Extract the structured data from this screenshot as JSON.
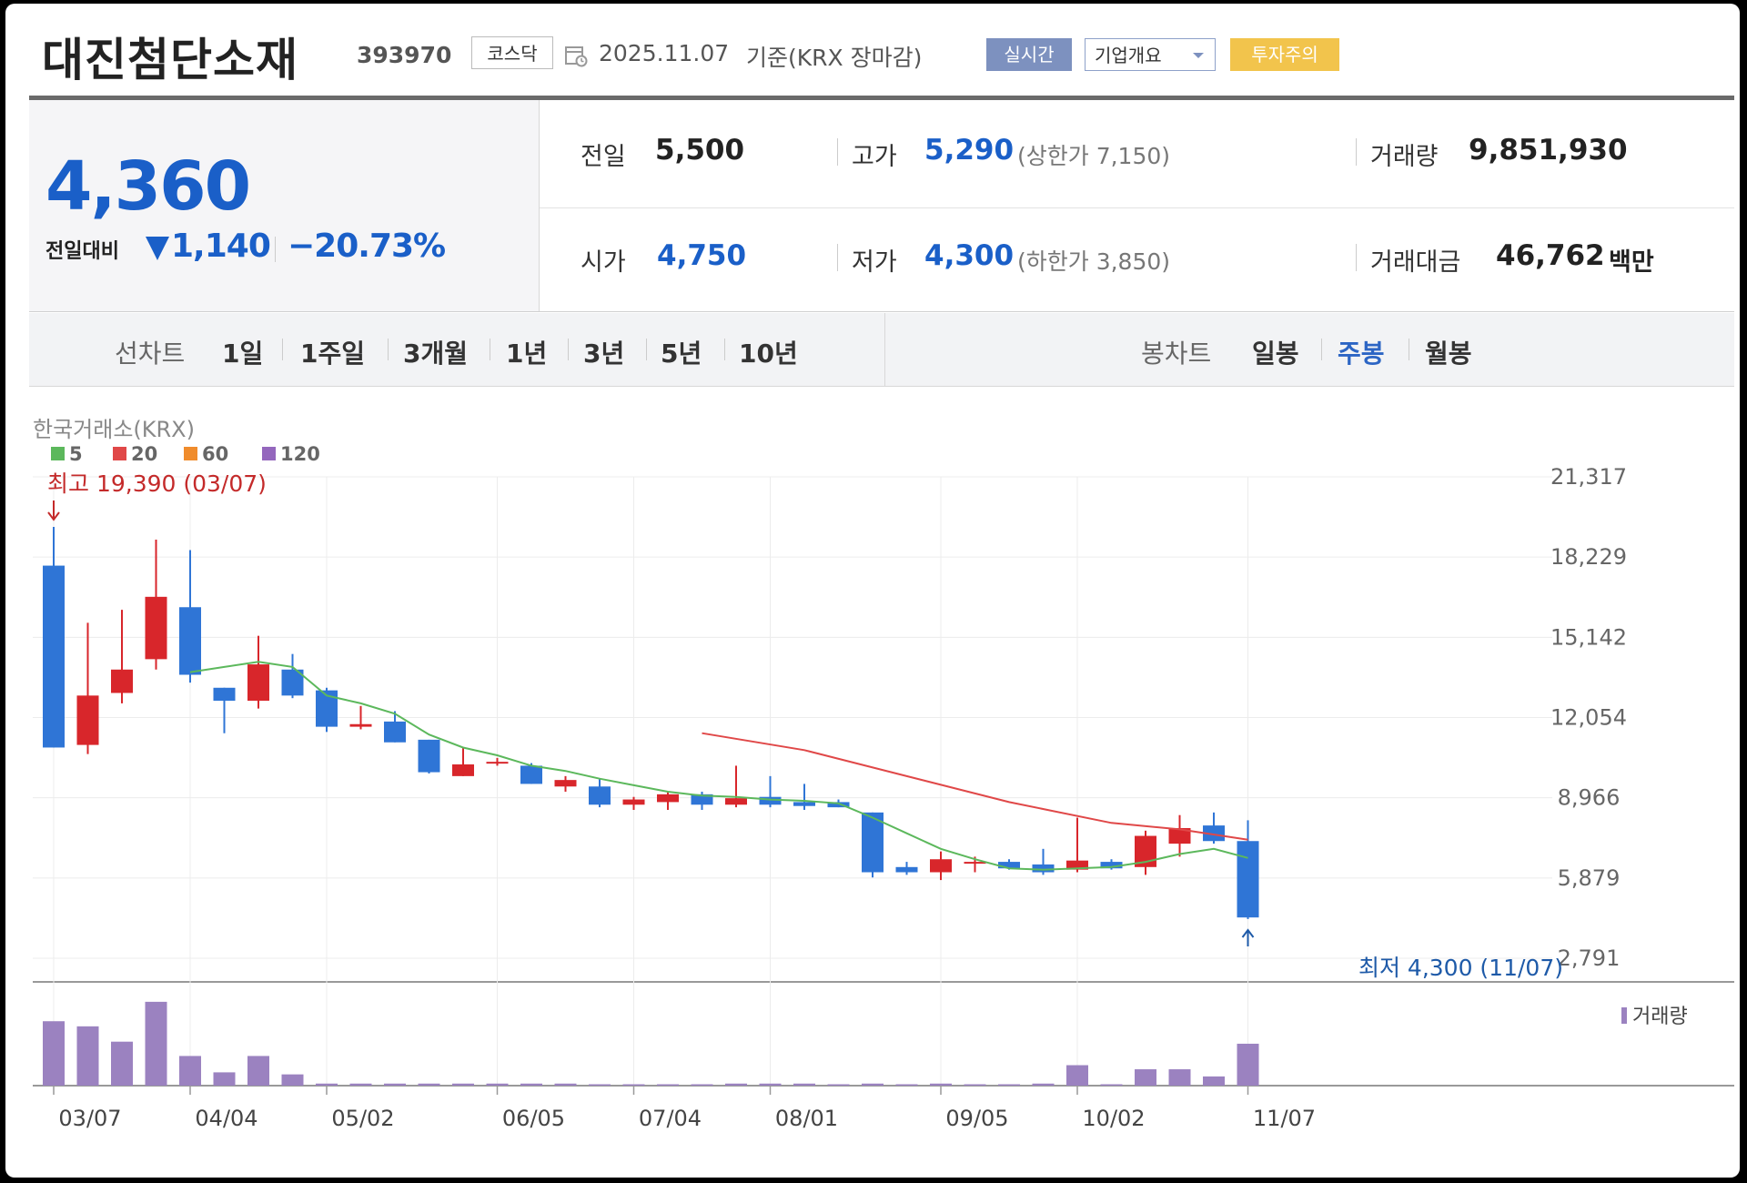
{
  "header": {
    "stock_name": "대진첨단소재",
    "stock_code": "393970",
    "market": "코스닥",
    "date": "2025.11.07",
    "basis": "기준(KRX 장마감)",
    "realtime_label": "실시간",
    "overview_label": "기업개요",
    "warning_label": "투자주의",
    "colors": {
      "realtime": "#7d91bf",
      "warning": "#f2c44c"
    }
  },
  "price": {
    "current": "4,360",
    "change_label": "전일대비",
    "change_value": "1,140",
    "change_pct": "−20.73%",
    "direction": "down",
    "color_down": "#1a5fc8"
  },
  "info": {
    "prev_close": {
      "label": "전일",
      "value": "5,500"
    },
    "open": {
      "label": "시가",
      "value": "4,750"
    },
    "high": {
      "label": "고가",
      "value": "5,290",
      "limit_text": "(상한가 7,150)"
    },
    "low": {
      "label": "저가",
      "value": "4,300",
      "limit_text": "(하한가 3,850)"
    },
    "volume": {
      "label": "거래량",
      "value": "9,851,930"
    },
    "amount": {
      "label": "거래대금",
      "value": "46,762",
      "unit": "백만"
    }
  },
  "periods": {
    "line_label": "선차트",
    "line_items": [
      "1일",
      "1주일",
      "3개월",
      "1년",
      "3년",
      "5년",
      "10년"
    ],
    "candle_label": "봉차트",
    "candle_items": [
      "일봉",
      "주봉",
      "월봉"
    ],
    "selected_candle": "주봉"
  },
  "chart_data": {
    "type": "candlestick",
    "source_label": "한국거래소(KRX)",
    "ma_legend": [
      {
        "name": "5",
        "color": "#5cb85c"
      },
      {
        "name": "20",
        "color": "#e04848"
      },
      {
        "name": "60",
        "color": "#f08c2c"
      },
      {
        "name": "120",
        "color": "#9467bd"
      }
    ],
    "y_ticks": [
      "21,317",
      "18,229",
      "15,142",
      "12,054",
      "8,966",
      "5,879",
      "2,791"
    ],
    "ylim": [
      2791,
      21317
    ],
    "x_labels": [
      {
        "label": "03/07",
        "index": 0
      },
      {
        "label": "04/04",
        "index": 4
      },
      {
        "label": "05/02",
        "index": 8
      },
      {
        "label": "06/05",
        "index": 13
      },
      {
        "label": "07/04",
        "index": 17
      },
      {
        "label": "08/01",
        "index": 21
      },
      {
        "label": "09/05",
        "index": 26
      },
      {
        "label": "10/02",
        "index": 30
      },
      {
        "label": "11/07",
        "index": 35
      }
    ],
    "high_annotation": {
      "text": "최고 19,390 (03/07)",
      "index": 0,
      "value": 19390
    },
    "low_annotation": {
      "text": "최저 4,300 (11/07)",
      "index": 35,
      "value": 4300
    },
    "volume_legend": "거래량",
    "colors": {
      "up": "#d8262b",
      "down": "#2f75d6",
      "volume": "#9b82c0"
    },
    "candles": [
      {
        "o": 17900,
        "h": 19390,
        "l": 10900,
        "c": 10900
      },
      {
        "o": 11000,
        "h": 15700,
        "l": 10650,
        "c": 12900
      },
      {
        "o": 13000,
        "h": 16200,
        "l": 12600,
        "c": 13900
      },
      {
        "o": 14300,
        "h": 18900,
        "l": 13900,
        "c": 16700
      },
      {
        "o": 16300,
        "h": 18500,
        "l": 13400,
        "c": 13700
      },
      {
        "o": 13200,
        "h": 13200,
        "l": 11450,
        "c": 12700
      },
      {
        "o": 12700,
        "h": 15200,
        "l": 12400,
        "c": 14100
      },
      {
        "o": 13900,
        "h": 14500,
        "l": 12800,
        "c": 12900
      },
      {
        "o": 13100,
        "h": 13200,
        "l": 11500,
        "c": 11700
      },
      {
        "o": 11700,
        "h": 12500,
        "l": 11600,
        "c": 11800
      },
      {
        "o": 11900,
        "h": 12300,
        "l": 11100,
        "c": 11100
      },
      {
        "o": 11200,
        "h": 11200,
        "l": 9900,
        "c": 9950
      },
      {
        "o": 9800,
        "h": 10900,
        "l": 9800,
        "c": 10250
      },
      {
        "o": 10300,
        "h": 10500,
        "l": 10200,
        "c": 10350
      },
      {
        "o": 10200,
        "h": 10300,
        "l": 9500,
        "c": 9500
      },
      {
        "o": 9400,
        "h": 9800,
        "l": 9200,
        "c": 9650
      },
      {
        "o": 9400,
        "h": 9700,
        "l": 8600,
        "c": 8700
      },
      {
        "o": 8700,
        "h": 9000,
        "l": 8500,
        "c": 8900
      },
      {
        "o": 8800,
        "h": 9200,
        "l": 8500,
        "c": 9100
      },
      {
        "o": 9100,
        "h": 9200,
        "l": 8500,
        "c": 8700
      },
      {
        "o": 8700,
        "h": 10200,
        "l": 8600,
        "c": 8950
      },
      {
        "o": 9000,
        "h": 9800,
        "l": 8600,
        "c": 8700
      },
      {
        "o": 8800,
        "h": 9500,
        "l": 8500,
        "c": 8650
      },
      {
        "o": 8800,
        "h": 8900,
        "l": 8600,
        "c": 8600
      },
      {
        "o": 8400,
        "h": 8400,
        "l": 5900,
        "c": 6100
      },
      {
        "o": 6300,
        "h": 6500,
        "l": 6000,
        "c": 6100
      },
      {
        "o": 6100,
        "h": 6900,
        "l": 5800,
        "c": 6600
      },
      {
        "o": 6500,
        "h": 6700,
        "l": 6100,
        "c": 6500
      },
      {
        "o": 6500,
        "h": 6600,
        "l": 6200,
        "c": 6250
      },
      {
        "o": 6400,
        "h": 7000,
        "l": 6000,
        "c": 6100
      },
      {
        "o": 6200,
        "h": 8200,
        "l": 6100,
        "c": 6550
      },
      {
        "o": 6500,
        "h": 6600,
        "l": 6200,
        "c": 6250
      },
      {
        "o": 6300,
        "h": 7700,
        "l": 6000,
        "c": 7500
      },
      {
        "o": 7200,
        "h": 8300,
        "l": 6700,
        "c": 7800
      },
      {
        "o": 7900,
        "h": 8400,
        "l": 7200,
        "c": 7300
      },
      {
        "o": 7300,
        "h": 8100,
        "l": 4300,
        "c": 4360
      }
    ],
    "ma5": [
      {
        "index": 4,
        "value": 13800
      },
      {
        "index": 5,
        "value": 14000
      },
      {
        "index": 6,
        "value": 14200
      },
      {
        "index": 7,
        "value": 14000
      },
      {
        "index": 8,
        "value": 12900
      },
      {
        "index": 9,
        "value": 12600
      },
      {
        "index": 10,
        "value": 12200
      },
      {
        "index": 11,
        "value": 11400
      },
      {
        "index": 12,
        "value": 10900
      },
      {
        "index": 13,
        "value": 10600
      },
      {
        "index": 14,
        "value": 10200
      },
      {
        "index": 15,
        "value": 10000
      },
      {
        "index": 16,
        "value": 9700
      },
      {
        "index": 17,
        "value": 9450
      },
      {
        "index": 18,
        "value": 9200
      },
      {
        "index": 19,
        "value": 9050
      },
      {
        "index": 20,
        "value": 9000
      },
      {
        "index": 21,
        "value": 8900
      },
      {
        "index": 22,
        "value": 8850
      },
      {
        "index": 23,
        "value": 8750
      },
      {
        "index": 24,
        "value": 8200
      },
      {
        "index": 25,
        "value": 7600
      },
      {
        "index": 26,
        "value": 7000
      },
      {
        "index": 27,
        "value": 6600
      },
      {
        "index": 28,
        "value": 6250
      },
      {
        "index": 29,
        "value": 6200
      },
      {
        "index": 30,
        "value": 6250
      },
      {
        "index": 31,
        "value": 6300
      },
      {
        "index": 32,
        "value": 6500
      },
      {
        "index": 33,
        "value": 6800
      },
      {
        "index": 34,
        "value": 7000
      },
      {
        "index": 35,
        "value": 6650
      }
    ],
    "ma20": [
      {
        "index": 19,
        "value": 11450
      },
      {
        "index": 22,
        "value": 10800
      },
      {
        "index": 25,
        "value": 9800
      },
      {
        "index": 28,
        "value": 8800
      },
      {
        "index": 31,
        "value": 8000
      },
      {
        "index": 33,
        "value": 7750
      },
      {
        "index": 35,
        "value": 7350
      }
    ],
    "volumes": [
      0.63,
      0.58,
      0.43,
      0.82,
      0.29,
      0.13,
      0.29,
      0.11,
      0.02,
      0.02,
      0.02,
      0.02,
      0.02,
      0.02,
      0.02,
      0.02,
      0.0,
      0.0,
      0.0,
      0.0,
      0.02,
      0.02,
      0.02,
      0.0,
      0.02,
      0.0,
      0.02,
      0.0,
      0.0,
      0.02,
      0.2,
      0.0,
      0.16,
      0.16,
      0.09,
      0.41
    ]
  }
}
